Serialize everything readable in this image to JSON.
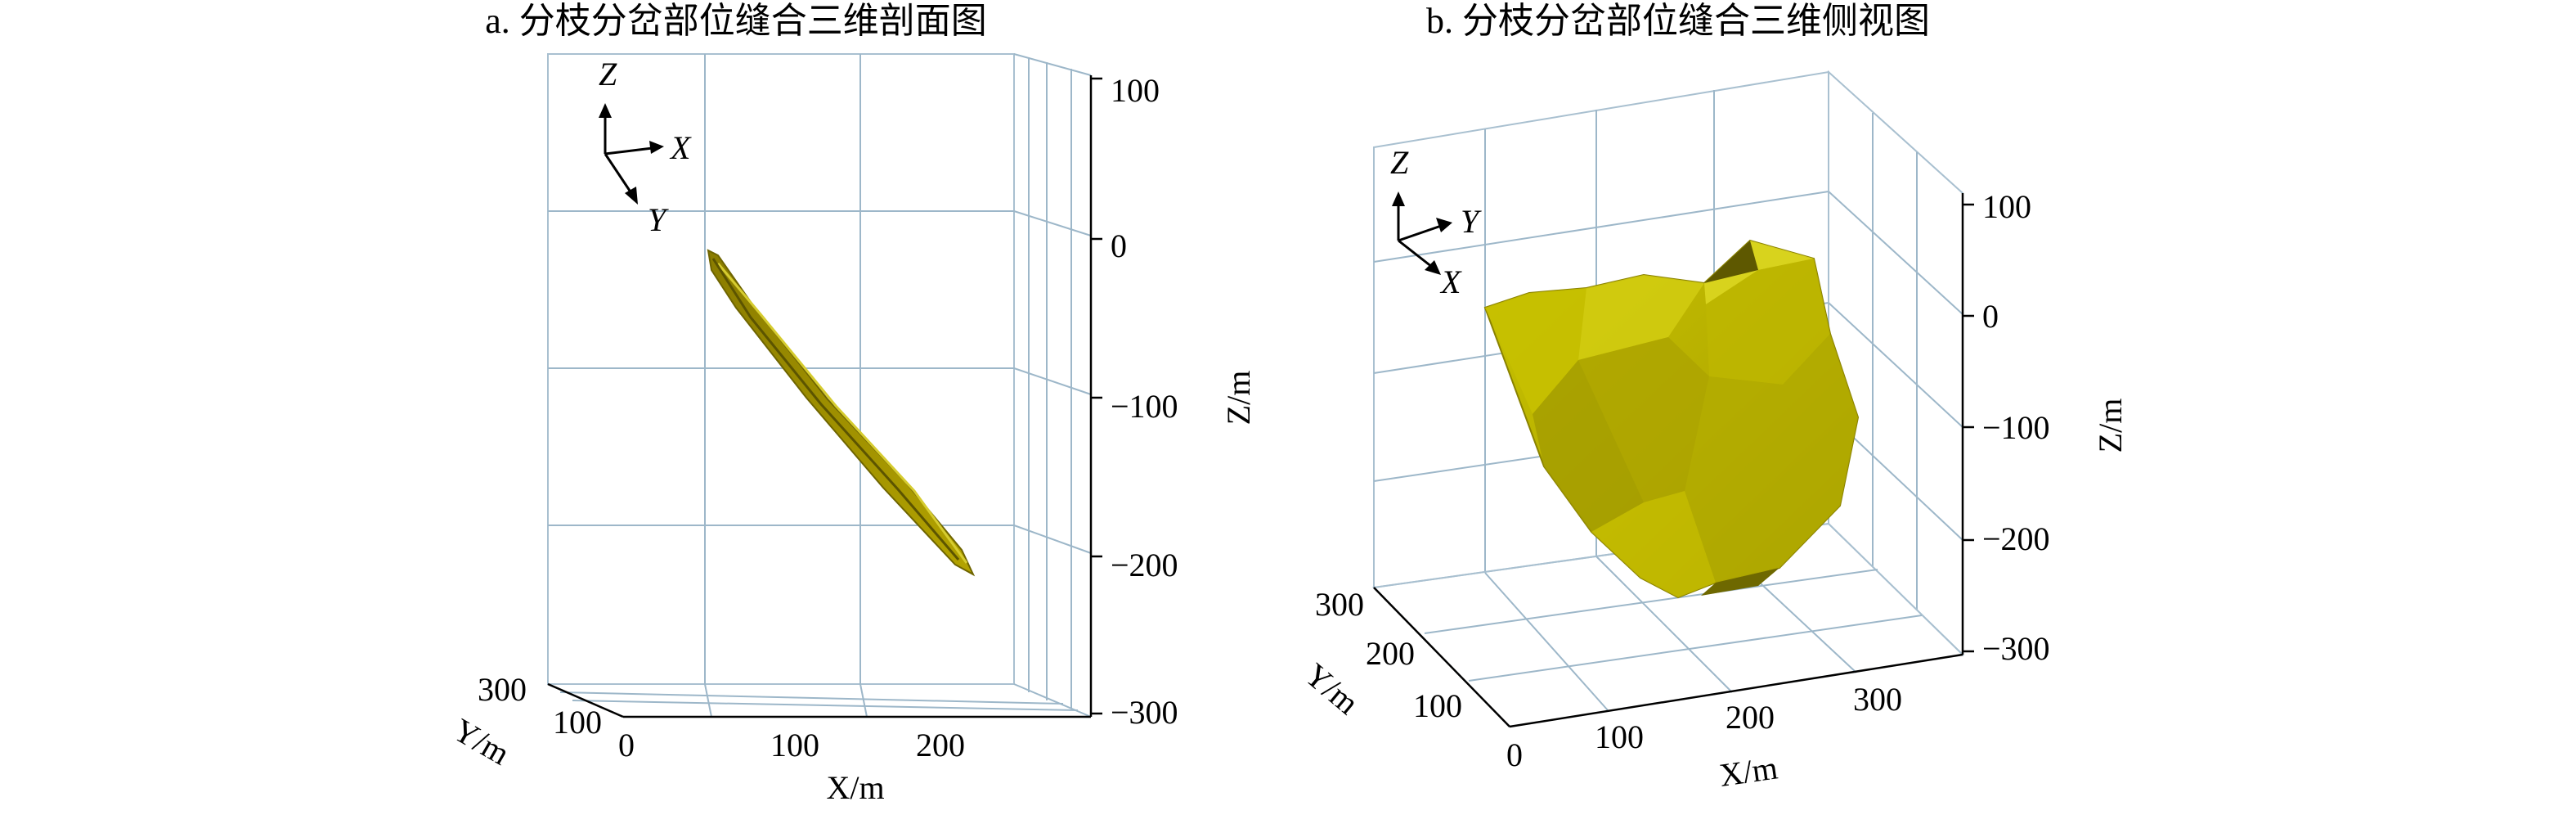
{
  "chart_data": [
    {
      "type": "3d-surface",
      "title": "a. 分枝分岔部位缝合三维剖面图",
      "xlabel": "X/m",
      "ylabel": "Y/m",
      "zlabel": "Z/m",
      "x_ticks": [
        "0",
        "100",
        "200"
      ],
      "y_ticks": [
        "100",
        "300"
      ],
      "z_ticks": [
        "100",
        "0",
        "−100",
        "−200",
        "−300"
      ],
      "xlim": [
        0,
        300
      ],
      "ylim": [
        0,
        300
      ],
      "zlim": [
        -300,
        100
      ],
      "grid": true,
      "surface_color": "#b2a400",
      "orientation_labels": [
        "Z",
        "X",
        "Y"
      ]
    },
    {
      "type": "3d-surface",
      "title": "b. 分枝分岔部位缝合三维侧视图",
      "xlabel": "X/m",
      "ylabel": "Y/m",
      "zlabel": "Z/m",
      "x_ticks": [
        "100",
        "200",
        "300"
      ],
      "y_ticks": [
        "0",
        "100",
        "200",
        "300"
      ],
      "z_ticks": [
        "100",
        "0",
        "−100",
        "−200",
        "−300"
      ],
      "xlim": [
        0,
        300
      ],
      "ylim": [
        0,
        300
      ],
      "zlim": [
        -300,
        100
      ],
      "grid": true,
      "surface_color": "#c8c000",
      "orientation_labels": [
        "Z",
        "Y",
        "X"
      ]
    }
  ]
}
